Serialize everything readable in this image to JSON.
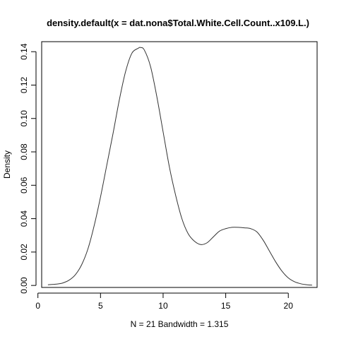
{
  "chart_data": {
    "type": "line",
    "title": "density.default(x = dat.nona$Total.White.Cell.Count..x109.L.)",
    "xlabel": "N = 21   Bandwidth = 1.315",
    "ylabel": "Density",
    "xlim": [
      0.3,
      22.3
    ],
    "ylim": [
      -0.0012,
      0.146
    ],
    "x_ticks": [
      0,
      5,
      10,
      15,
      20
    ],
    "x_tick_labels": [
      "0",
      "5",
      "10",
      "15",
      "20"
    ],
    "y_ticks": [
      0,
      0.02,
      0.04,
      0.06,
      0.08,
      0.1,
      0.12,
      0.14
    ],
    "y_tick_labels": [
      "0.00",
      "0.02",
      "0.04",
      "0.06",
      "0.08",
      "0.10",
      "0.12",
      "0.14"
    ],
    "grid": false,
    "legend": "none",
    "line_color": "#333333",
    "series": [
      {
        "x": [
          0.8,
          1.5,
          2.0,
          2.5,
          3.0,
          3.5,
          4.0,
          4.5,
          5.0,
          5.5,
          6.0,
          6.5,
          7.0,
          7.5,
          8.0,
          8.2,
          8.5,
          9.0,
          9.5,
          10.0,
          10.5,
          11.0,
          11.5,
          12.0,
          12.5,
          13.0,
          13.5,
          14.0,
          14.5,
          15.0,
          15.5,
          16.0,
          16.5,
          17.0,
          17.5,
          18.0,
          18.5,
          19.0,
          19.5,
          20.0,
          20.5,
          21.0,
          21.5,
          21.9
        ],
        "y": [
          0.0004,
          0.0008,
          0.0015,
          0.0032,
          0.0065,
          0.0125,
          0.022,
          0.036,
          0.053,
          0.072,
          0.091,
          0.111,
          0.128,
          0.139,
          0.142,
          0.1425,
          0.141,
          0.131,
          0.113,
          0.092,
          0.071,
          0.054,
          0.04,
          0.031,
          0.0265,
          0.0245,
          0.0255,
          0.029,
          0.0325,
          0.034,
          0.0348,
          0.0348,
          0.0345,
          0.034,
          0.032,
          0.027,
          0.0205,
          0.014,
          0.0085,
          0.0045,
          0.0022,
          0.001,
          0.0004,
          0.0002
        ]
      }
    ]
  }
}
